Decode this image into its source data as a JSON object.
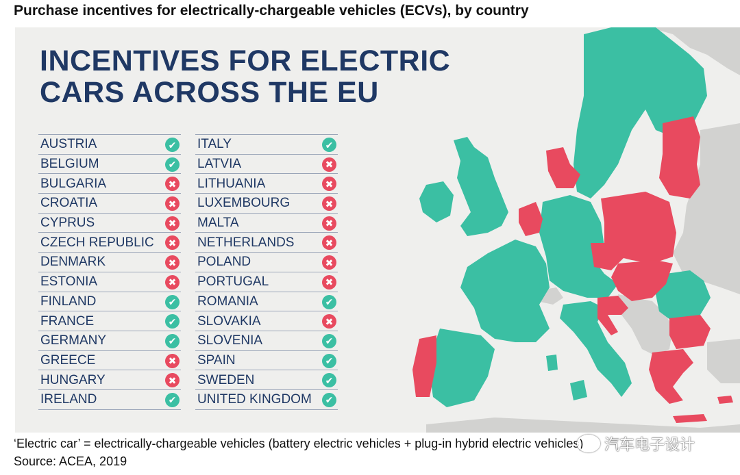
{
  "header": {
    "title": "Purchase incentives for electrically-chargeable vehicles (ECVs), by country"
  },
  "infographic": {
    "heading": "INCENTIVES FOR ELECTRIC CARS ACROSS THE EU"
  },
  "colors": {
    "incentive": "#3bbfa3",
    "no_incentive": "#e84a5f",
    "non_eu": "#d2d2d0",
    "heading": "#1f3864"
  },
  "countries_left": [
    {
      "name": "AUSTRIA",
      "incentive": true
    },
    {
      "name": "BELGIUM",
      "incentive": true
    },
    {
      "name": "BULGARIA",
      "incentive": false
    },
    {
      "name": "CROATIA",
      "incentive": false
    },
    {
      "name": "CYPRUS",
      "incentive": false
    },
    {
      "name": "CZECH REPUBLIC",
      "incentive": false
    },
    {
      "name": "DENMARK",
      "incentive": false
    },
    {
      "name": "ESTONIA",
      "incentive": false
    },
    {
      "name": "FINLAND",
      "incentive": true
    },
    {
      "name": "FRANCE",
      "incentive": true
    },
    {
      "name": "GERMANY",
      "incentive": true
    },
    {
      "name": "GREECE",
      "incentive": false
    },
    {
      "name": "HUNGARY",
      "incentive": false
    },
    {
      "name": "IRELAND",
      "incentive": true
    }
  ],
  "countries_right": [
    {
      "name": "ITALY",
      "incentive": true
    },
    {
      "name": "LATVIA",
      "incentive": false
    },
    {
      "name": "LITHUANIA",
      "incentive": false
    },
    {
      "name": "LUXEMBOURG",
      "incentive": false
    },
    {
      "name": "MALTA",
      "incentive": false
    },
    {
      "name": "NETHERLANDS",
      "incentive": false
    },
    {
      "name": "POLAND",
      "incentive": false
    },
    {
      "name": "PORTUGAL",
      "incentive": false
    },
    {
      "name": "ROMANIA",
      "incentive": true
    },
    {
      "name": "SLOVAKIA",
      "incentive": false
    },
    {
      "name": "SLOVENIA",
      "incentive": true
    },
    {
      "name": "SPAIN",
      "incentive": true
    },
    {
      "name": "SWEDEN",
      "incentive": true
    },
    {
      "name": "UNITED KINGDOM",
      "incentive": true
    }
  ],
  "icons": {
    "yes": "check-circle-icon",
    "no": "cross-circle-icon"
  },
  "footer": {
    "note": "‘Electric car’ = electrically-chargeable vehicles (battery electric vehicles + plug-in hybrid electric vehicles)",
    "source": "Source: ACEA, 2019"
  },
  "watermark": {
    "text": "汽车电子设计"
  }
}
